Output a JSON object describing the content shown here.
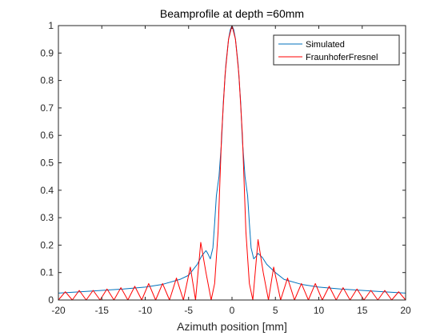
{
  "chart_data": {
    "type": "line",
    "title": "Beamprofile at depth =60mm",
    "xlabel": "Azimuth position [mm]",
    "ylabel": "",
    "xlim": [
      -20,
      20
    ],
    "ylim": [
      0,
      1
    ],
    "xticks": [
      -20,
      -15,
      -10,
      -5,
      0,
      5,
      10,
      15,
      20
    ],
    "yticks": [
      0,
      0.1,
      0.2,
      0.3,
      0.4,
      0.5,
      0.6,
      0.7,
      0.8,
      0.9,
      1
    ],
    "grid": false,
    "legend_position": "top-right",
    "series": [
      {
        "name": "Simulated",
        "color": "#0072BD",
        "x": [
          -20,
          -17.5,
          -15,
          -12.5,
          -10,
          -8,
          -6,
          -5,
          -4,
          -3.5,
          -3,
          -2.8,
          -2.5,
          -2.2,
          -2,
          -1.8,
          -1.5,
          -1.2,
          -1,
          -0.7,
          -0.4,
          -0.2,
          0,
          0.2,
          0.4,
          0.7,
          1,
          1.2,
          1.5,
          1.8,
          2,
          2.2,
          2.5,
          2.8,
          3,
          3.5,
          4,
          5,
          6,
          8,
          10,
          12.5,
          15,
          17.5,
          20
        ],
        "y": [
          0.025,
          0.03,
          0.035,
          0.04,
          0.047,
          0.057,
          0.075,
          0.09,
          0.13,
          0.16,
          0.18,
          0.17,
          0.15,
          0.19,
          0.28,
          0.38,
          0.45,
          0.58,
          0.72,
          0.86,
          0.95,
          0.985,
          1.0,
          0.985,
          0.95,
          0.86,
          0.72,
          0.58,
          0.45,
          0.38,
          0.28,
          0.19,
          0.15,
          0.16,
          0.17,
          0.155,
          0.13,
          0.1,
          0.075,
          0.057,
          0.047,
          0.04,
          0.035,
          0.03,
          0.025
        ]
      },
      {
        "name": "FraunhoferFresnel",
        "color": "#FF0000",
        "x": [
          -20,
          -19.2,
          -18.4,
          -17.6,
          -16.8,
          -16,
          -15.2,
          -14.4,
          -13.6,
          -12.8,
          -12,
          -11.2,
          -10.4,
          -9.6,
          -8.8,
          -8,
          -7.2,
          -6.4,
          -5.6,
          -4.8,
          -4.2,
          -3.6,
          -3,
          -2.4,
          -2,
          -1.6,
          -1.2,
          -0.8,
          -0.4,
          0,
          0.4,
          0.8,
          1.2,
          1.6,
          2,
          2.4,
          3,
          3.6,
          4.2,
          4.8,
          5.6,
          6.4,
          7.2,
          8,
          8.8,
          9.6,
          10.4,
          11.2,
          12,
          12.8,
          13.6,
          14.4,
          15.2,
          16,
          16.8,
          17.6,
          18.4,
          19.2,
          20
        ],
        "y": [
          0,
          0.03,
          0,
          0.035,
          0,
          0.035,
          0,
          0.04,
          0,
          0.045,
          0,
          0.05,
          0,
          0.06,
          0,
          0.06,
          0,
          0.08,
          0,
          0.12,
          0,
          0.21,
          0.1,
          0,
          0.06,
          0.25,
          0.6,
          0.82,
          0.95,
          1.0,
          0.95,
          0.82,
          0.6,
          0.25,
          0.06,
          0,
          0.22,
          0.1,
          0,
          0.12,
          0,
          0.08,
          0,
          0.06,
          0,
          0.06,
          0,
          0.05,
          0,
          0.045,
          0,
          0.04,
          0,
          0.035,
          0,
          0.035,
          0,
          0.03,
          0
        ]
      }
    ]
  }
}
